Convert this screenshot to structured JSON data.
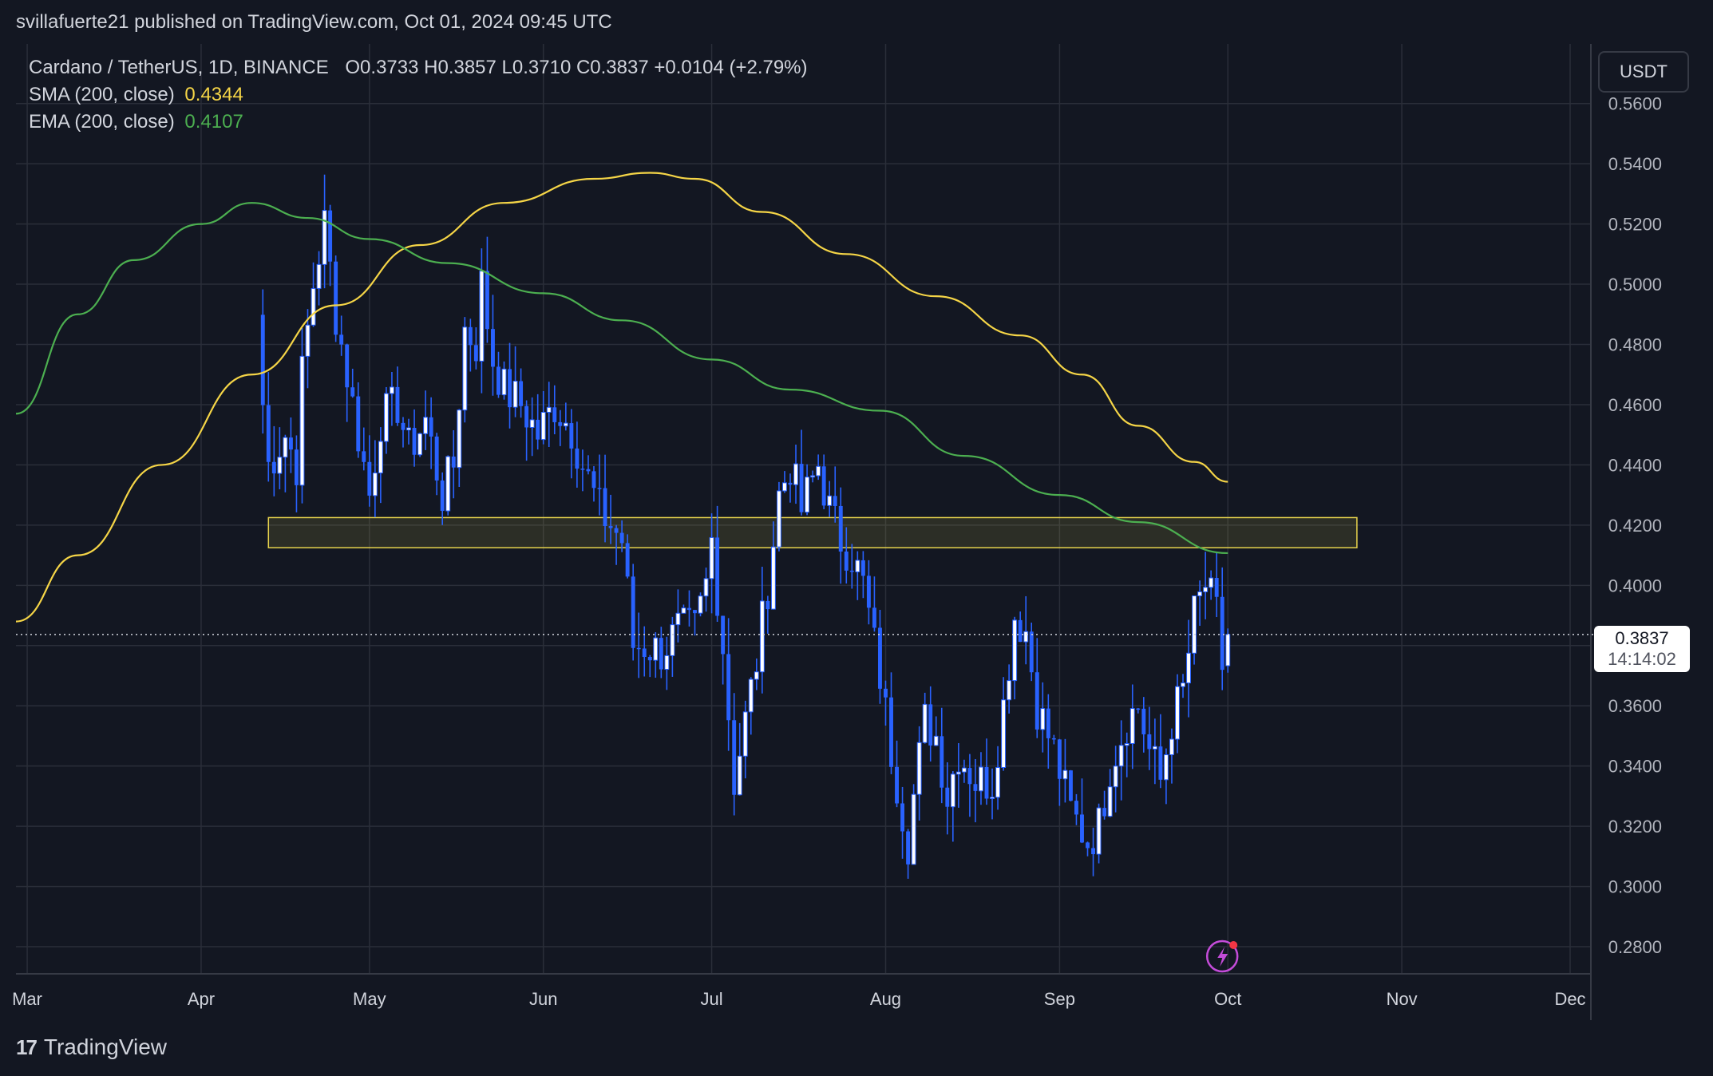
{
  "header": {
    "publisher": "svillafuerte21 published on TradingView.com, Oct 01, 2024 09:45 UTC"
  },
  "legend": {
    "symbol": "Cardano / TetherUS, 1D, BINANCE",
    "ohlc": "O0.3733  H0.3857  L0.3710  C0.3837  +0.0104 (+2.79%)",
    "sma_label": "SMA (200, close)",
    "sma_value": "0.4344",
    "ema_label": "EMA (200, close)",
    "ema_value": "0.4107"
  },
  "price_scale": {
    "unit": "USDT",
    "last_price": "0.3837",
    "countdown": "14:14:02"
  },
  "brand": {
    "name": "TradingView"
  },
  "colors": {
    "background": "#131722",
    "grid": "#2a2e39",
    "candle": "#2962ff",
    "candle_up_body": "#ffffff",
    "sma": "#f5d547",
    "ema": "#4caf50",
    "zone_border": "#e8d44d"
  },
  "chart_data": {
    "type": "candlestick",
    "title": "Cardano / TetherUS, 1D, BINANCE",
    "ylim": [
      0.271,
      0.5798
    ],
    "y_ticks": [
      "0.5600",
      "0.5400",
      "0.5200",
      "0.5000",
      "0.4800",
      "0.4600",
      "0.4400",
      "0.4200",
      "0.4000",
      "0.3800",
      "0.3600",
      "0.3400",
      "0.3200",
      "0.3000",
      "0.2800"
    ],
    "y_tick_values": [
      0.56,
      0.54,
      0.52,
      0.5,
      0.48,
      0.46,
      0.44,
      0.42,
      0.4,
      0.38,
      0.36,
      0.34,
      0.32,
      0.3,
      0.28
    ],
    "x_ticks": [
      {
        "label": "Mar",
        "date": "2024-03-01"
      },
      {
        "label": "Apr",
        "date": "2024-04-01"
      },
      {
        "label": "May",
        "date": "2024-05-01"
      },
      {
        "label": "Jun",
        "date": "2024-06-01"
      },
      {
        "label": "Jul",
        "date": "2024-07-01"
      },
      {
        "label": "Aug",
        "date": "2024-08-01"
      },
      {
        "label": "Sep",
        "date": "2024-09-01"
      },
      {
        "label": "Oct",
        "date": "2024-10-01"
      },
      {
        "label": "Nov",
        "date": "2024-11-01"
      },
      {
        "label": "Dec",
        "date": "2024-12-01"
      }
    ],
    "close_anchors": [
      [
        "2024-04-12",
        0.46
      ],
      [
        "2024-04-13",
        0.44
      ],
      [
        "2024-04-16",
        0.45
      ],
      [
        "2024-04-18",
        0.44
      ],
      [
        "2024-04-19",
        0.47
      ],
      [
        "2024-04-21",
        0.5
      ],
      [
        "2024-04-23",
        0.52
      ],
      [
        "2024-04-25",
        0.49
      ],
      [
        "2024-04-27",
        0.47
      ],
      [
        "2024-04-30",
        0.44
      ],
      [
        "2024-05-01",
        0.43
      ],
      [
        "2024-05-03",
        0.455
      ],
      [
        "2024-05-06",
        0.46
      ],
      [
        "2024-05-08",
        0.445
      ],
      [
        "2024-05-11",
        0.455
      ],
      [
        "2024-05-14",
        0.43
      ],
      [
        "2024-05-16",
        0.44
      ],
      [
        "2024-05-18",
        0.485
      ],
      [
        "2024-05-20",
        0.48
      ],
      [
        "2024-05-21",
        0.5
      ],
      [
        "2024-05-23",
        0.475
      ],
      [
        "2024-05-25",
        0.465
      ],
      [
        "2024-05-28",
        0.46
      ],
      [
        "2024-05-31",
        0.45
      ],
      [
        "2024-06-03",
        0.46
      ],
      [
        "2024-06-06",
        0.452
      ],
      [
        "2024-06-08",
        0.44
      ],
      [
        "2024-06-11",
        0.425
      ],
      [
        "2024-06-13",
        0.42
      ],
      [
        "2024-06-15",
        0.415
      ],
      [
        "2024-06-17",
        0.38
      ],
      [
        "2024-06-19",
        0.38
      ],
      [
        "2024-06-22",
        0.378
      ],
      [
        "2024-06-25",
        0.385
      ],
      [
        "2024-06-28",
        0.385
      ],
      [
        "2024-06-30",
        0.4
      ],
      [
        "2024-07-01",
        0.415
      ],
      [
        "2024-07-03",
        0.38
      ],
      [
        "2024-07-05",
        0.335
      ],
      [
        "2024-07-07",
        0.355
      ],
      [
        "2024-07-09",
        0.375
      ],
      [
        "2024-07-11",
        0.4
      ],
      [
        "2024-07-13",
        0.43
      ],
      [
        "2024-07-15",
        0.44
      ],
      [
        "2024-07-17",
        0.425
      ],
      [
        "2024-07-20",
        0.44
      ],
      [
        "2024-07-22",
        0.425
      ],
      [
        "2024-07-24",
        0.415
      ],
      [
        "2024-07-26",
        0.41
      ],
      [
        "2024-07-28",
        0.4
      ],
      [
        "2024-07-30",
        0.38
      ],
      [
        "2024-07-31",
        0.37
      ],
      [
        "2024-08-02",
        0.345
      ],
      [
        "2024-08-05",
        0.315
      ],
      [
        "2024-08-06",
        0.33
      ],
      [
        "2024-08-08",
        0.355
      ],
      [
        "2024-08-10",
        0.35
      ],
      [
        "2024-08-12",
        0.33
      ],
      [
        "2024-08-14",
        0.345
      ],
      [
        "2024-08-17",
        0.335
      ],
      [
        "2024-08-20",
        0.335
      ],
      [
        "2024-08-22",
        0.36
      ],
      [
        "2024-08-24",
        0.39
      ],
      [
        "2024-08-26",
        0.385
      ],
      [
        "2024-08-28",
        0.36
      ],
      [
        "2024-08-31",
        0.345
      ],
      [
        "2024-09-03",
        0.325
      ],
      [
        "2024-09-06",
        0.315
      ],
      [
        "2024-09-08",
        0.32
      ],
      [
        "2024-09-10",
        0.34
      ],
      [
        "2024-09-13",
        0.355
      ],
      [
        "2024-09-15",
        0.36
      ],
      [
        "2024-09-17",
        0.345
      ],
      [
        "2024-09-19",
        0.335
      ],
      [
        "2024-09-21",
        0.355
      ],
      [
        "2024-09-23",
        0.365
      ],
      [
        "2024-09-25",
        0.39
      ],
      [
        "2024-09-27",
        0.4
      ],
      [
        "2024-09-29",
        0.39
      ],
      [
        "2024-09-30",
        0.3733
      ],
      [
        "2024-10-01",
        0.3837
      ]
    ],
    "series": [
      {
        "name": "SMA (200, close)",
        "values": [
          [
            "2024-02-28",
            0.388
          ],
          [
            "2024-03-10",
            0.41
          ],
          [
            "2024-03-25",
            0.44
          ],
          [
            "2024-04-10",
            0.47
          ],
          [
            "2024-04-25",
            0.493
          ],
          [
            "2024-05-10",
            0.513
          ],
          [
            "2024-05-25",
            0.527
          ],
          [
            "2024-06-10",
            0.535
          ],
          [
            "2024-06-20",
            0.537
          ],
          [
            "2024-06-28",
            0.535
          ],
          [
            "2024-07-10",
            0.524
          ],
          [
            "2024-07-25",
            0.51
          ],
          [
            "2024-08-10",
            0.496
          ],
          [
            "2024-08-25",
            0.483
          ],
          [
            "2024-09-05",
            0.47
          ],
          [
            "2024-09-15",
            0.453
          ],
          [
            "2024-09-25",
            0.441
          ],
          [
            "2024-10-01",
            0.4344
          ]
        ]
      },
      {
        "name": "EMA (200, close)",
        "values": [
          [
            "2024-02-28",
            0.457
          ],
          [
            "2024-03-10",
            0.49
          ],
          [
            "2024-03-20",
            0.508
          ],
          [
            "2024-04-01",
            0.52
          ],
          [
            "2024-04-10",
            0.527
          ],
          [
            "2024-04-20",
            0.522
          ],
          [
            "2024-05-01",
            0.515
          ],
          [
            "2024-05-15",
            0.507
          ],
          [
            "2024-06-01",
            0.497
          ],
          [
            "2024-06-15",
            0.488
          ],
          [
            "2024-07-01",
            0.475
          ],
          [
            "2024-07-15",
            0.465
          ],
          [
            "2024-07-31",
            0.458
          ],
          [
            "2024-08-15",
            0.443
          ],
          [
            "2024-09-01",
            0.43
          ],
          [
            "2024-09-15",
            0.421
          ],
          [
            "2024-10-01",
            0.4107
          ]
        ]
      }
    ],
    "last_bar": {
      "open": 0.3733,
      "high": 0.3857,
      "low": 0.371,
      "close": 0.3837
    },
    "zone": {
      "start": "2024-04-13",
      "end": "2024-10-24",
      "low": 0.4125,
      "high": 0.4225
    },
    "last_price_line": 0.3837,
    "xlabel": "",
    "ylabel": ""
  }
}
